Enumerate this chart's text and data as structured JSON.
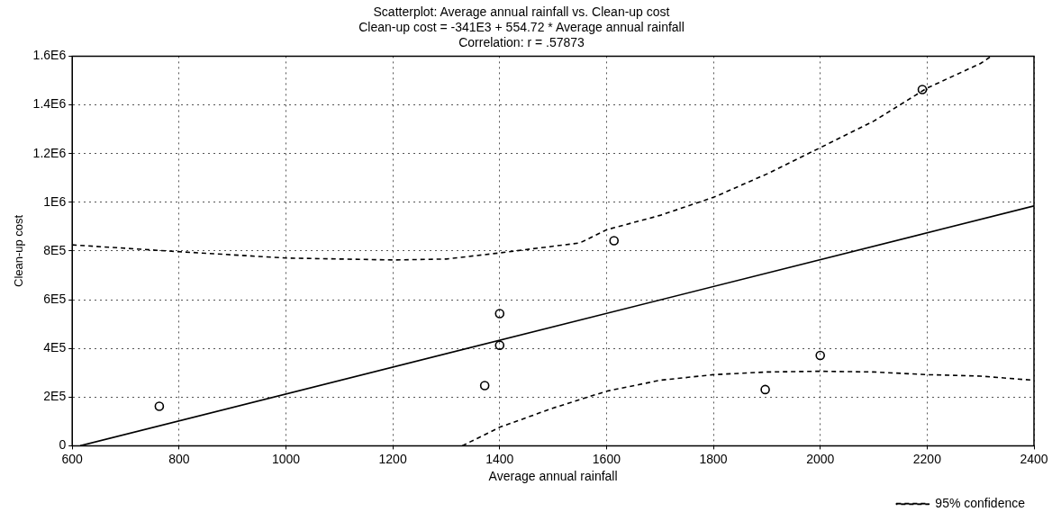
{
  "chart_data": {
    "type": "scatter",
    "title": "Scatterplot: Average annual rainfall vs. Clean-up cost",
    "subtitle": "Clean-up cost = -341E3 + 554.72 * Average annual rainfall",
    "annotations": [
      "Correlation: r = .57873"
    ],
    "xlabel": "Average annual rainfall",
    "ylabel": "Clean-up cost",
    "xlim": [
      600,
      2400
    ],
    "xticks": [
      600,
      800,
      1000,
      1200,
      1400,
      1600,
      1800,
      2000,
      2200,
      2400
    ],
    "ylim": [
      0,
      1600000
    ],
    "yticks": [
      {
        "value": 0,
        "label": "0"
      },
      {
        "value": 200000,
        "label": "2E5"
      },
      {
        "value": 400000,
        "label": "4E5"
      },
      {
        "value": 600000,
        "label": "6E5"
      },
      {
        "value": 800000,
        "label": "8E5"
      },
      {
        "value": 1000000,
        "label": "1E6"
      },
      {
        "value": 1200000,
        "label": "1.2E6"
      },
      {
        "value": 1400000,
        "label": "1.4E6"
      },
      {
        "value": 1600000,
        "label": "1.6E6"
      }
    ],
    "grid": true,
    "legend": "bottom right",
    "series": [
      {
        "marker": "circle",
        "color": "#000000",
        "x": [
          763,
          1372,
          1400,
          1400,
          1614,
          1897,
          2000,
          2191
        ],
        "values": [
          162000,
          247000,
          413000,
          543000,
          842000,
          231000,
          371000,
          1463000
        ]
      },
      {
        "type": "line",
        "marker": "none",
        "color": "#000000",
        "line_style": "solid",
        "x": [
          615,
          2400
        ],
        "values": [
          0,
          985000
        ]
      },
      {
        "type": "line",
        "marker": "none",
        "name": "95% confidence",
        "color": "#000000",
        "line_style": "dashed",
        "x": [
          600,
          800,
          1000,
          1200,
          1300,
          1400,
          1550,
          1600,
          1700,
          1800,
          1900,
          2000,
          2100,
          2200,
          2300,
          2320
        ],
        "values": [
          825000,
          797000,
          771000,
          763000,
          767000,
          792000,
          833000,
          887000,
          946000,
          1020000,
          1116000,
          1224000,
          1333000,
          1469000,
          1570000,
          1600000
        ]
      },
      {
        "type": "line",
        "marker": "none",
        "color": "#000000",
        "line_style": "dashed",
        "x": [
          1330,
          1400,
          1500,
          1600,
          1700,
          1800,
          1900,
          2000,
          2100,
          2200,
          2300,
          2400
        ],
        "values": [
          0,
          76000,
          155000,
          224000,
          269000,
          292000,
          303000,
          306000,
          303000,
          292000,
          286000,
          269000
        ]
      }
    ]
  }
}
